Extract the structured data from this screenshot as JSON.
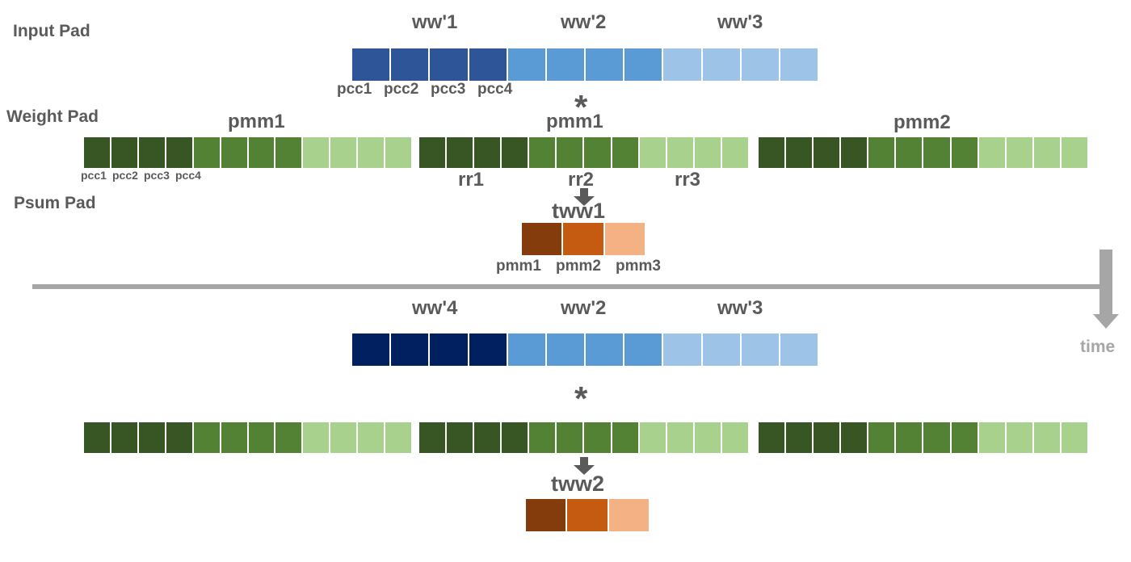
{
  "labels": {
    "input_pad": "Input Pad",
    "weight_pad": "Weight Pad",
    "psum_pad": "Psum Pad",
    "time": "time",
    "star": "*"
  },
  "top": {
    "input_groups": [
      "ww'1",
      "ww'2",
      "ww'3"
    ],
    "input_cells": [
      "pcc1",
      "pcc2",
      "pcc3",
      "pcc4"
    ],
    "weight_groups": [
      "pmm1",
      "pmm1",
      "pmm2"
    ],
    "weight_cells": [
      "pcc1",
      "pcc2",
      "pcc3",
      "pcc4"
    ],
    "rows": [
      "rr1",
      "rr2",
      "rr3"
    ],
    "psum_title": "tww1",
    "psum_cells": [
      "pmm1",
      "pmm2",
      "pmm3"
    ]
  },
  "bottom": {
    "input_groups": [
      "ww'4",
      "ww'2",
      "ww'3"
    ],
    "psum_title": "tww2"
  },
  "colors": {
    "text": "#5a5a5a",
    "timeline": "#a6a6a6",
    "input_top": [
      "#2e5597",
      "#5b9bd5",
      "#9dc3e6"
    ],
    "input_bottom": [
      "#002060",
      "#5b9bd5",
      "#9dc3e6"
    ],
    "weight": [
      "#375623",
      "#548235",
      "#a9d18e"
    ],
    "psum": [
      "#843c0c",
      "#c55a11",
      "#f4b183"
    ]
  }
}
